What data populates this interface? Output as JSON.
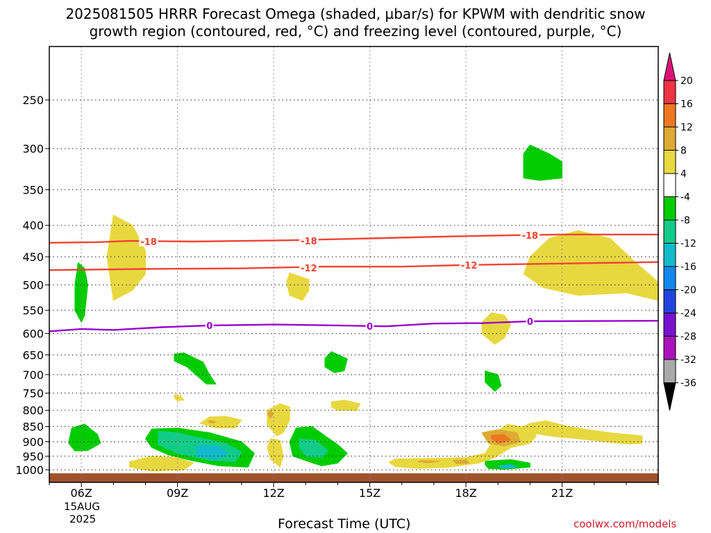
{
  "title_line1": "2025081505 HRRR Forecast Omega (shaded, µbar/s) for KPWM with dendritic snow",
  "title_line2": "growth region (contoured, red, °C) and freezing level (contoured, purple, °C)",
  "credit": "coolwx.com/models",
  "chart_data": {
    "type": "time-height cross section",
    "xlabel": "Forecast Time (UTC)",
    "x_ticks": [
      "06Z",
      "09Z",
      "12Z",
      "15Z",
      "18Z",
      "21Z"
    ],
    "x_hours": [
      6,
      9,
      12,
      15,
      18,
      21
    ],
    "x_range_hours": [
      5,
      24
    ],
    "date_labels": [
      "15AUG",
      "2025"
    ],
    "y_ticks": [
      250,
      300,
      350,
      400,
      450,
      500,
      550,
      600,
      650,
      700,
      750,
      800,
      850,
      900,
      950,
      1000
    ],
    "y_range_mb": [
      1020,
      200
    ],
    "grid": "dotted",
    "colorbar": {
      "levels": [
        20,
        16,
        12,
        8,
        4,
        -4,
        -8,
        -12,
        -16,
        -20,
        -24,
        -28,
        -32,
        -36
      ],
      "colors": [
        "#dd1177",
        "#ee3344",
        "#ee7722",
        "#ddaa33",
        "#e8d840",
        "#ffffff",
        "#00cc00",
        "#11cc88",
        "#11bbcc",
        "#1188ee",
        "#2244dd",
        "#7711cc",
        "#aa11bb",
        "#aaaaaa",
        "#000000"
      ]
    },
    "contours": [
      {
        "name": "-18",
        "color": "#ee4433",
        "points": [
          [
            5.0,
            427
          ],
          [
            6.5,
            426
          ],
          [
            7.5,
            424
          ],
          [
            9.5,
            425
          ],
          [
            12.5,
            423
          ],
          [
            15.0,
            420
          ],
          [
            17.5,
            417
          ],
          [
            19.5,
            415
          ],
          [
            21.0,
            414
          ],
          [
            24.0,
            414
          ]
        ],
        "labels": [
          [
            8.1,
            425
          ],
          [
            13.1,
            424
          ],
          [
            20.0,
            415
          ]
        ]
      },
      {
        "name": "-12",
        "color": "#ee4433",
        "points": [
          [
            5.0,
            473
          ],
          [
            8.0,
            471
          ],
          [
            11.0,
            470
          ],
          [
            13.5,
            467
          ],
          [
            16.0,
            467
          ],
          [
            18.0,
            464
          ],
          [
            20.5,
            462
          ],
          [
            24.0,
            459
          ]
        ],
        "labels": [
          [
            13.1,
            469
          ],
          [
            18.1,
            464
          ]
        ]
      },
      {
        "name": "0",
        "color": "#9900cc",
        "points": [
          [
            5.0,
            595
          ],
          [
            6.0,
            590
          ],
          [
            7.0,
            592
          ],
          [
            8.5,
            586
          ],
          [
            10.0,
            582
          ],
          [
            12.0,
            580
          ],
          [
            14.0,
            582
          ],
          [
            15.5,
            584
          ],
          [
            17.0,
            578
          ],
          [
            18.5,
            577
          ],
          [
            20.0,
            573
          ],
          [
            24.0,
            572
          ]
        ],
        "labels": [
          [
            10.0,
            582
          ],
          [
            15.0,
            584
          ],
          [
            20.0,
            573
          ]
        ]
      }
    ],
    "omega_regions": [
      {
        "value": 5,
        "points": [
          [
            7.0,
            385
          ],
          [
            7.6,
            400
          ],
          [
            8.0,
            440
          ],
          [
            8.0,
            480
          ],
          [
            7.6,
            510
          ],
          [
            7.0,
            530
          ],
          [
            6.8,
            450
          ]
        ]
      },
      {
        "value": 5,
        "points": [
          [
            12.5,
            478
          ],
          [
            13.1,
            490
          ],
          [
            13.1,
            510
          ],
          [
            12.9,
            530
          ],
          [
            12.5,
            520
          ],
          [
            12.4,
            495
          ]
        ]
      },
      {
        "value": 5,
        "points": [
          [
            18.8,
            555
          ],
          [
            19.2,
            560
          ],
          [
            19.4,
            580
          ],
          [
            19.2,
            610
          ],
          [
            18.9,
            625
          ],
          [
            18.5,
            600
          ],
          [
            18.5,
            575
          ]
        ]
      },
      {
        "value": 5,
        "points": [
          [
            20.0,
            450
          ],
          [
            20.6,
            420
          ],
          [
            21.5,
            408
          ],
          [
            22.5,
            420
          ],
          [
            23.2,
            455
          ],
          [
            24.0,
            495
          ],
          [
            24.0,
            530
          ],
          [
            23.0,
            515
          ],
          [
            21.5,
            520
          ],
          [
            20.4,
            505
          ],
          [
            19.8,
            480
          ]
        ]
      },
      {
        "value": -6,
        "points": [
          [
            19.8,
            306
          ],
          [
            20.0,
            296
          ],
          [
            20.6,
            306
          ],
          [
            21.0,
            315
          ],
          [
            21.0,
            335
          ],
          [
            20.3,
            338
          ],
          [
            19.8,
            335
          ],
          [
            19.8,
            318
          ]
        ]
      },
      {
        "value": -6,
        "points": [
          [
            5.9,
            460
          ],
          [
            6.1,
            470
          ],
          [
            6.2,
            500
          ],
          [
            6.1,
            560
          ],
          [
            6.0,
            575
          ],
          [
            5.8,
            550
          ],
          [
            5.8,
            500
          ]
        ]
      },
      {
        "value": -6,
        "points": [
          [
            13.8,
            642
          ],
          [
            14.3,
            660
          ],
          [
            14.2,
            690
          ],
          [
            13.9,
            695
          ],
          [
            13.6,
            680
          ],
          [
            13.6,
            658
          ]
        ]
      },
      {
        "value": -6,
        "points": [
          [
            18.6,
            690
          ],
          [
            19.0,
            700
          ],
          [
            19.1,
            730
          ],
          [
            18.9,
            745
          ],
          [
            18.6,
            720
          ]
        ]
      },
      {
        "value": -6,
        "points": [
          [
            8.9,
            648
          ],
          [
            9.2,
            645
          ],
          [
            9.8,
            668
          ],
          [
            10.0,
            700
          ],
          [
            10.2,
            725
          ],
          [
            9.9,
            725
          ],
          [
            9.3,
            680
          ],
          [
            8.9,
            665
          ]
        ]
      },
      {
        "value": 5,
        "points": [
          [
            8.9,
            754
          ],
          [
            9.1,
            758
          ],
          [
            9.2,
            770
          ],
          [
            9.0,
            772
          ],
          [
            8.9,
            763
          ]
        ]
      },
      {
        "value": 5,
        "points": [
          [
            10.0,
            820
          ],
          [
            10.5,
            818
          ],
          [
            11.0,
            830
          ],
          [
            10.8,
            855
          ],
          [
            10.2,
            855
          ],
          [
            9.7,
            840
          ]
        ]
      },
      {
        "value": 5,
        "points": [
          [
            13.8,
            775
          ],
          [
            14.2,
            770
          ],
          [
            14.7,
            780
          ],
          [
            14.6,
            800
          ],
          [
            14.0,
            800
          ],
          [
            13.8,
            790
          ]
        ]
      },
      {
        "value": 5,
        "points": [
          [
            11.8,
            800
          ],
          [
            12.2,
            780
          ],
          [
            12.5,
            790
          ],
          [
            12.5,
            830
          ],
          [
            12.3,
            870
          ],
          [
            12.1,
            880
          ],
          [
            11.8,
            845
          ]
        ]
      },
      {
        "value": 5,
        "points": [
          [
            11.9,
            890
          ],
          [
            12.2,
            895
          ],
          [
            12.3,
            950
          ],
          [
            12.2,
            990
          ],
          [
            11.9,
            960
          ],
          [
            11.8,
            920
          ]
        ]
      },
      {
        "value": 5,
        "points": [
          [
            20.0,
            840
          ],
          [
            20.5,
            832
          ],
          [
            21.2,
            850
          ],
          [
            21.8,
            860
          ],
          [
            22.5,
            870
          ],
          [
            23.5,
            880
          ],
          [
            23.5,
            905
          ],
          [
            23.0,
            908
          ],
          [
            21.5,
            890
          ],
          [
            20.7,
            882
          ],
          [
            20.0,
            870
          ],
          [
            19.6,
            860
          ]
        ]
      },
      {
        "value": -6,
        "points": [
          [
            5.7,
            855
          ],
          [
            6.1,
            842
          ],
          [
            6.5,
            875
          ],
          [
            6.6,
            905
          ],
          [
            6.2,
            930
          ],
          [
            5.8,
            932
          ],
          [
            5.6,
            905
          ]
        ]
      },
      {
        "value": -6,
        "points": [
          [
            8.2,
            858
          ],
          [
            9.0,
            855
          ],
          [
            10.0,
            870
          ],
          [
            11.0,
            900
          ],
          [
            11.4,
            940
          ],
          [
            11.2,
            990
          ],
          [
            10.3,
            985
          ],
          [
            9.4,
            965
          ],
          [
            8.7,
            945
          ],
          [
            8.2,
            920
          ],
          [
            8.0,
            890
          ]
        ]
      },
      {
        "value": -10,
        "points": [
          [
            8.4,
            865
          ],
          [
            9.0,
            870
          ],
          [
            9.6,
            885
          ],
          [
            10.5,
            905
          ],
          [
            11.0,
            935
          ],
          [
            10.8,
            970
          ],
          [
            10.0,
            965
          ],
          [
            9.0,
            940
          ],
          [
            8.4,
            910
          ]
        ]
      },
      {
        "value": -14,
        "points": [
          [
            9.6,
            912
          ],
          [
            10.3,
            915
          ],
          [
            10.6,
            940
          ],
          [
            10.2,
            962
          ],
          [
            9.6,
            950
          ]
        ]
      },
      {
        "value": -6,
        "points": [
          [
            12.7,
            855
          ],
          [
            13.2,
            850
          ],
          [
            13.6,
            880
          ],
          [
            14.0,
            910
          ],
          [
            14.3,
            940
          ],
          [
            14.0,
            975
          ],
          [
            13.5,
            985
          ],
          [
            13.1,
            970
          ],
          [
            12.6,
            950
          ],
          [
            12.5,
            900
          ]
        ]
      },
      {
        "value": -10,
        "points": [
          [
            12.8,
            890
          ],
          [
            13.3,
            895
          ],
          [
            13.7,
            930
          ],
          [
            13.5,
            955
          ],
          [
            13.0,
            950
          ],
          [
            12.8,
            920
          ]
        ]
      },
      {
        "value": -6,
        "points": [
          [
            18.6,
            968
          ],
          [
            19.4,
            962
          ],
          [
            20.0,
            975
          ],
          [
            20.0,
            990
          ],
          [
            19.2,
            998
          ],
          [
            18.7,
            995
          ],
          [
            18.6,
            980
          ]
        ]
      },
      {
        "value": -14,
        "points": [
          [
            19.0,
            985
          ],
          [
            19.4,
            980
          ],
          [
            19.6,
            990
          ],
          [
            19.2,
            995
          ]
        ]
      },
      {
        "value": 5,
        "points": [
          [
            7.5,
            970
          ],
          [
            8.2,
            950
          ],
          [
            9.0,
            955
          ],
          [
            9.5,
            975
          ],
          [
            9.2,
            1000
          ],
          [
            8.2,
            1005
          ],
          [
            7.5,
            990
          ]
        ]
      },
      {
        "value": 6,
        "points": [
          [
            7.9,
            968
          ],
          [
            8.6,
            970
          ],
          [
            8.5,
            982
          ],
          [
            7.9,
            980
          ]
        ]
      },
      {
        "value": 5,
        "points": [
          [
            15.8,
            960
          ],
          [
            17.0,
            958
          ],
          [
            18.0,
            955
          ],
          [
            18.6,
            940
          ],
          [
            18.8,
            905
          ],
          [
            18.9,
            870
          ],
          [
            19.3,
            843
          ],
          [
            20.0,
            855
          ],
          [
            20.2,
            880
          ],
          [
            20.0,
            905
          ],
          [
            19.4,
            920
          ],
          [
            18.9,
            955
          ],
          [
            18.4,
            975
          ],
          [
            17.5,
            990
          ],
          [
            16.5,
            995
          ],
          [
            15.8,
            988
          ],
          [
            15.6,
            972
          ]
        ]
      },
      {
        "value": 9,
        "points": [
          [
            18.5,
            870
          ],
          [
            19.0,
            860
          ],
          [
            19.6,
            870
          ],
          [
            19.7,
            900
          ],
          [
            19.2,
            915
          ],
          [
            18.7,
            905
          ]
        ]
      },
      {
        "value": 13,
        "points": [
          [
            18.8,
            878
          ],
          [
            19.2,
            876
          ],
          [
            19.4,
            895
          ],
          [
            19.0,
            905
          ],
          [
            18.8,
            890
          ]
        ]
      },
      {
        "value": 9,
        "points": [
          [
            17.6,
            965
          ],
          [
            18.0,
            963
          ],
          [
            18.1,
            975
          ],
          [
            17.7,
            978
          ]
        ]
      },
      {
        "value": 9,
        "points": [
          [
            11.9,
            800
          ],
          [
            12.0,
            810
          ],
          [
            11.9,
            825
          ],
          [
            11.8,
            810
          ]
        ]
      },
      {
        "value": 9,
        "points": [
          [
            10.0,
            830
          ],
          [
            10.2,
            835
          ],
          [
            10.1,
            840
          ],
          [
            9.95,
            836
          ]
        ]
      },
      {
        "value": 9,
        "points": [
          [
            16.6,
            966
          ],
          [
            17.2,
            968
          ],
          [
            16.8,
            974
          ],
          [
            16.5,
            970
          ]
        ]
      }
    ]
  }
}
